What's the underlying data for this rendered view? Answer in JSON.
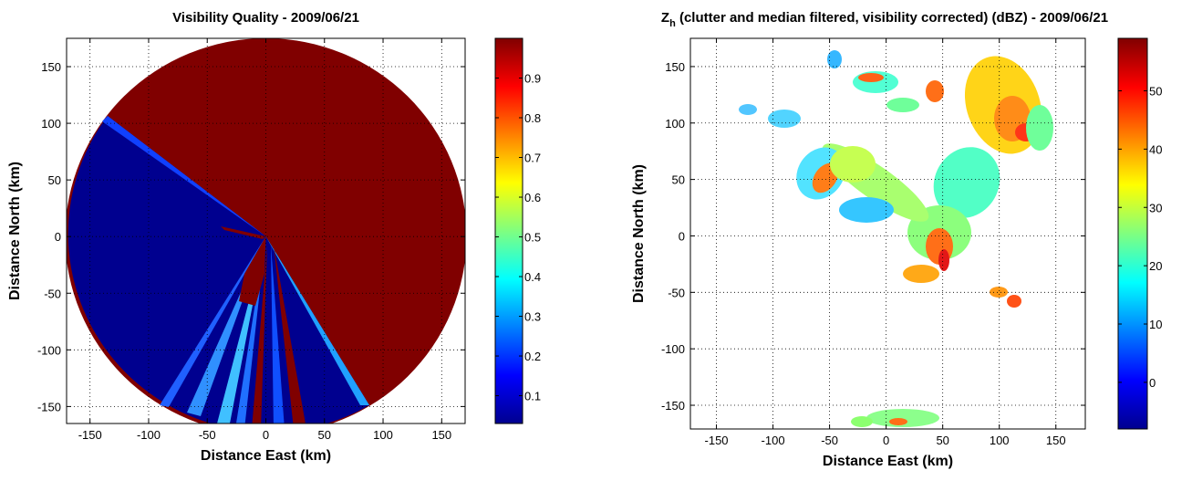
{
  "chart_data": [
    {
      "type": "heatmap",
      "title": "Visibility Quality - 2009/06/21",
      "xlabel": "Distance East (km)",
      "ylabel": "Distance North (km)",
      "xlim": [
        -170,
        170
      ],
      "ylim": [
        -165,
        175
      ],
      "xticks": [
        -150,
        -100,
        -50,
        0,
        50,
        100,
        150
      ],
      "yticks": [
        -150,
        -100,
        -50,
        0,
        50,
        100,
        150
      ],
      "grid": true,
      "colormap": "jet",
      "clim": [
        0.03,
        1
      ],
      "cticks": [
        0.1,
        0.2,
        0.3,
        0.4,
        0.5,
        0.6,
        0.7,
        0.8,
        0.9
      ]
    },
    {
      "type": "heatmap",
      "title_symbol": "Z",
      "title_subscript": "h",
      "title": " (clutter and median filtered, visibility corrected) (dBZ) - 2009/06/21",
      "xlabel": "Distance East (km)",
      "ylabel": "Distance North (km)",
      "xlim": [
        -173,
        176
      ],
      "ylim": [
        -171,
        175
      ],
      "xticks": [
        -150,
        -100,
        -50,
        0,
        50,
        100,
        150
      ],
      "yticks": [
        -150,
        -100,
        -50,
        0,
        50,
        100,
        150
      ],
      "grid": true,
      "colormap": "jet",
      "clim": [
        -8,
        59
      ],
      "cticks": [
        0,
        10,
        20,
        30,
        40,
        50
      ]
    }
  ]
}
